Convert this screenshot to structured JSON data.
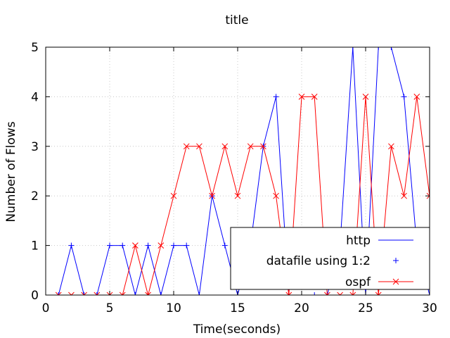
{
  "chart_data": {
    "type": "line",
    "title": "title",
    "xlabel": "Time(seconds)",
    "ylabel": "Number of Flows",
    "xlim": [
      0,
      30
    ],
    "ylim": [
      0,
      5
    ],
    "x_ticks": [
      0,
      5,
      10,
      15,
      20,
      25,
      30
    ],
    "y_ticks": [
      0,
      1,
      2,
      3,
      4,
      5
    ],
    "grid": true,
    "legend_position": "bottom-right",
    "series": [
      {
        "name": "http",
        "style": "line",
        "color": "#0000ff",
        "x": [
          1,
          2,
          3,
          4,
          5,
          6,
          7,
          8,
          9,
          10,
          11,
          12,
          13,
          14,
          15,
          16,
          17,
          18,
          19,
          20,
          21,
          22,
          23,
          24,
          25,
          26,
          27,
          28,
          29,
          30
        ],
        "y": [
          0,
          1,
          0,
          0,
          1,
          1,
          0,
          1,
          0,
          1,
          1,
          0,
          2,
          1,
          0,
          1,
          3,
          4,
          0,
          0,
          0,
          0,
          1,
          5,
          0,
          5,
          5,
          4,
          1,
          0
        ]
      },
      {
        "name": "datafile using 1:2",
        "style": "points",
        "marker": "plus",
        "color": "#0000ff",
        "x": [
          1,
          2,
          3,
          4,
          5,
          6,
          7,
          8,
          9,
          10,
          11,
          12,
          13,
          14,
          15,
          16,
          17,
          18,
          19,
          20,
          21,
          22,
          23,
          24,
          25,
          26,
          27,
          28,
          29,
          30
        ],
        "y": [
          0,
          1,
          0,
          0,
          1,
          1,
          0,
          1,
          0,
          1,
          1,
          0,
          2,
          1,
          0,
          1,
          3,
          4,
          0,
          0,
          0,
          0,
          1,
          5,
          0,
          5,
          5,
          4,
          1,
          0
        ]
      },
      {
        "name": "ospf",
        "style": "linespoints",
        "marker": "cross",
        "color": "#ff0000",
        "x": [
          1,
          2,
          3,
          4,
          5,
          6,
          7,
          8,
          9,
          10,
          11,
          12,
          13,
          14,
          15,
          16,
          17,
          18,
          19,
          20,
          21,
          22,
          23,
          24,
          25,
          26,
          27,
          28,
          29,
          30
        ],
        "y": [
          0,
          0,
          0,
          0,
          0,
          0,
          1,
          0,
          1,
          2,
          3,
          3,
          2,
          3,
          2,
          3,
          3,
          2,
          0,
          4,
          4,
          0,
          0,
          0,
          4,
          0,
          3,
          2,
          4,
          2
        ]
      }
    ]
  },
  "colors": {
    "grid": "#c8c8c8",
    "axis": "#000000",
    "http": "#0000ff",
    "ospf": "#ff0000"
  }
}
